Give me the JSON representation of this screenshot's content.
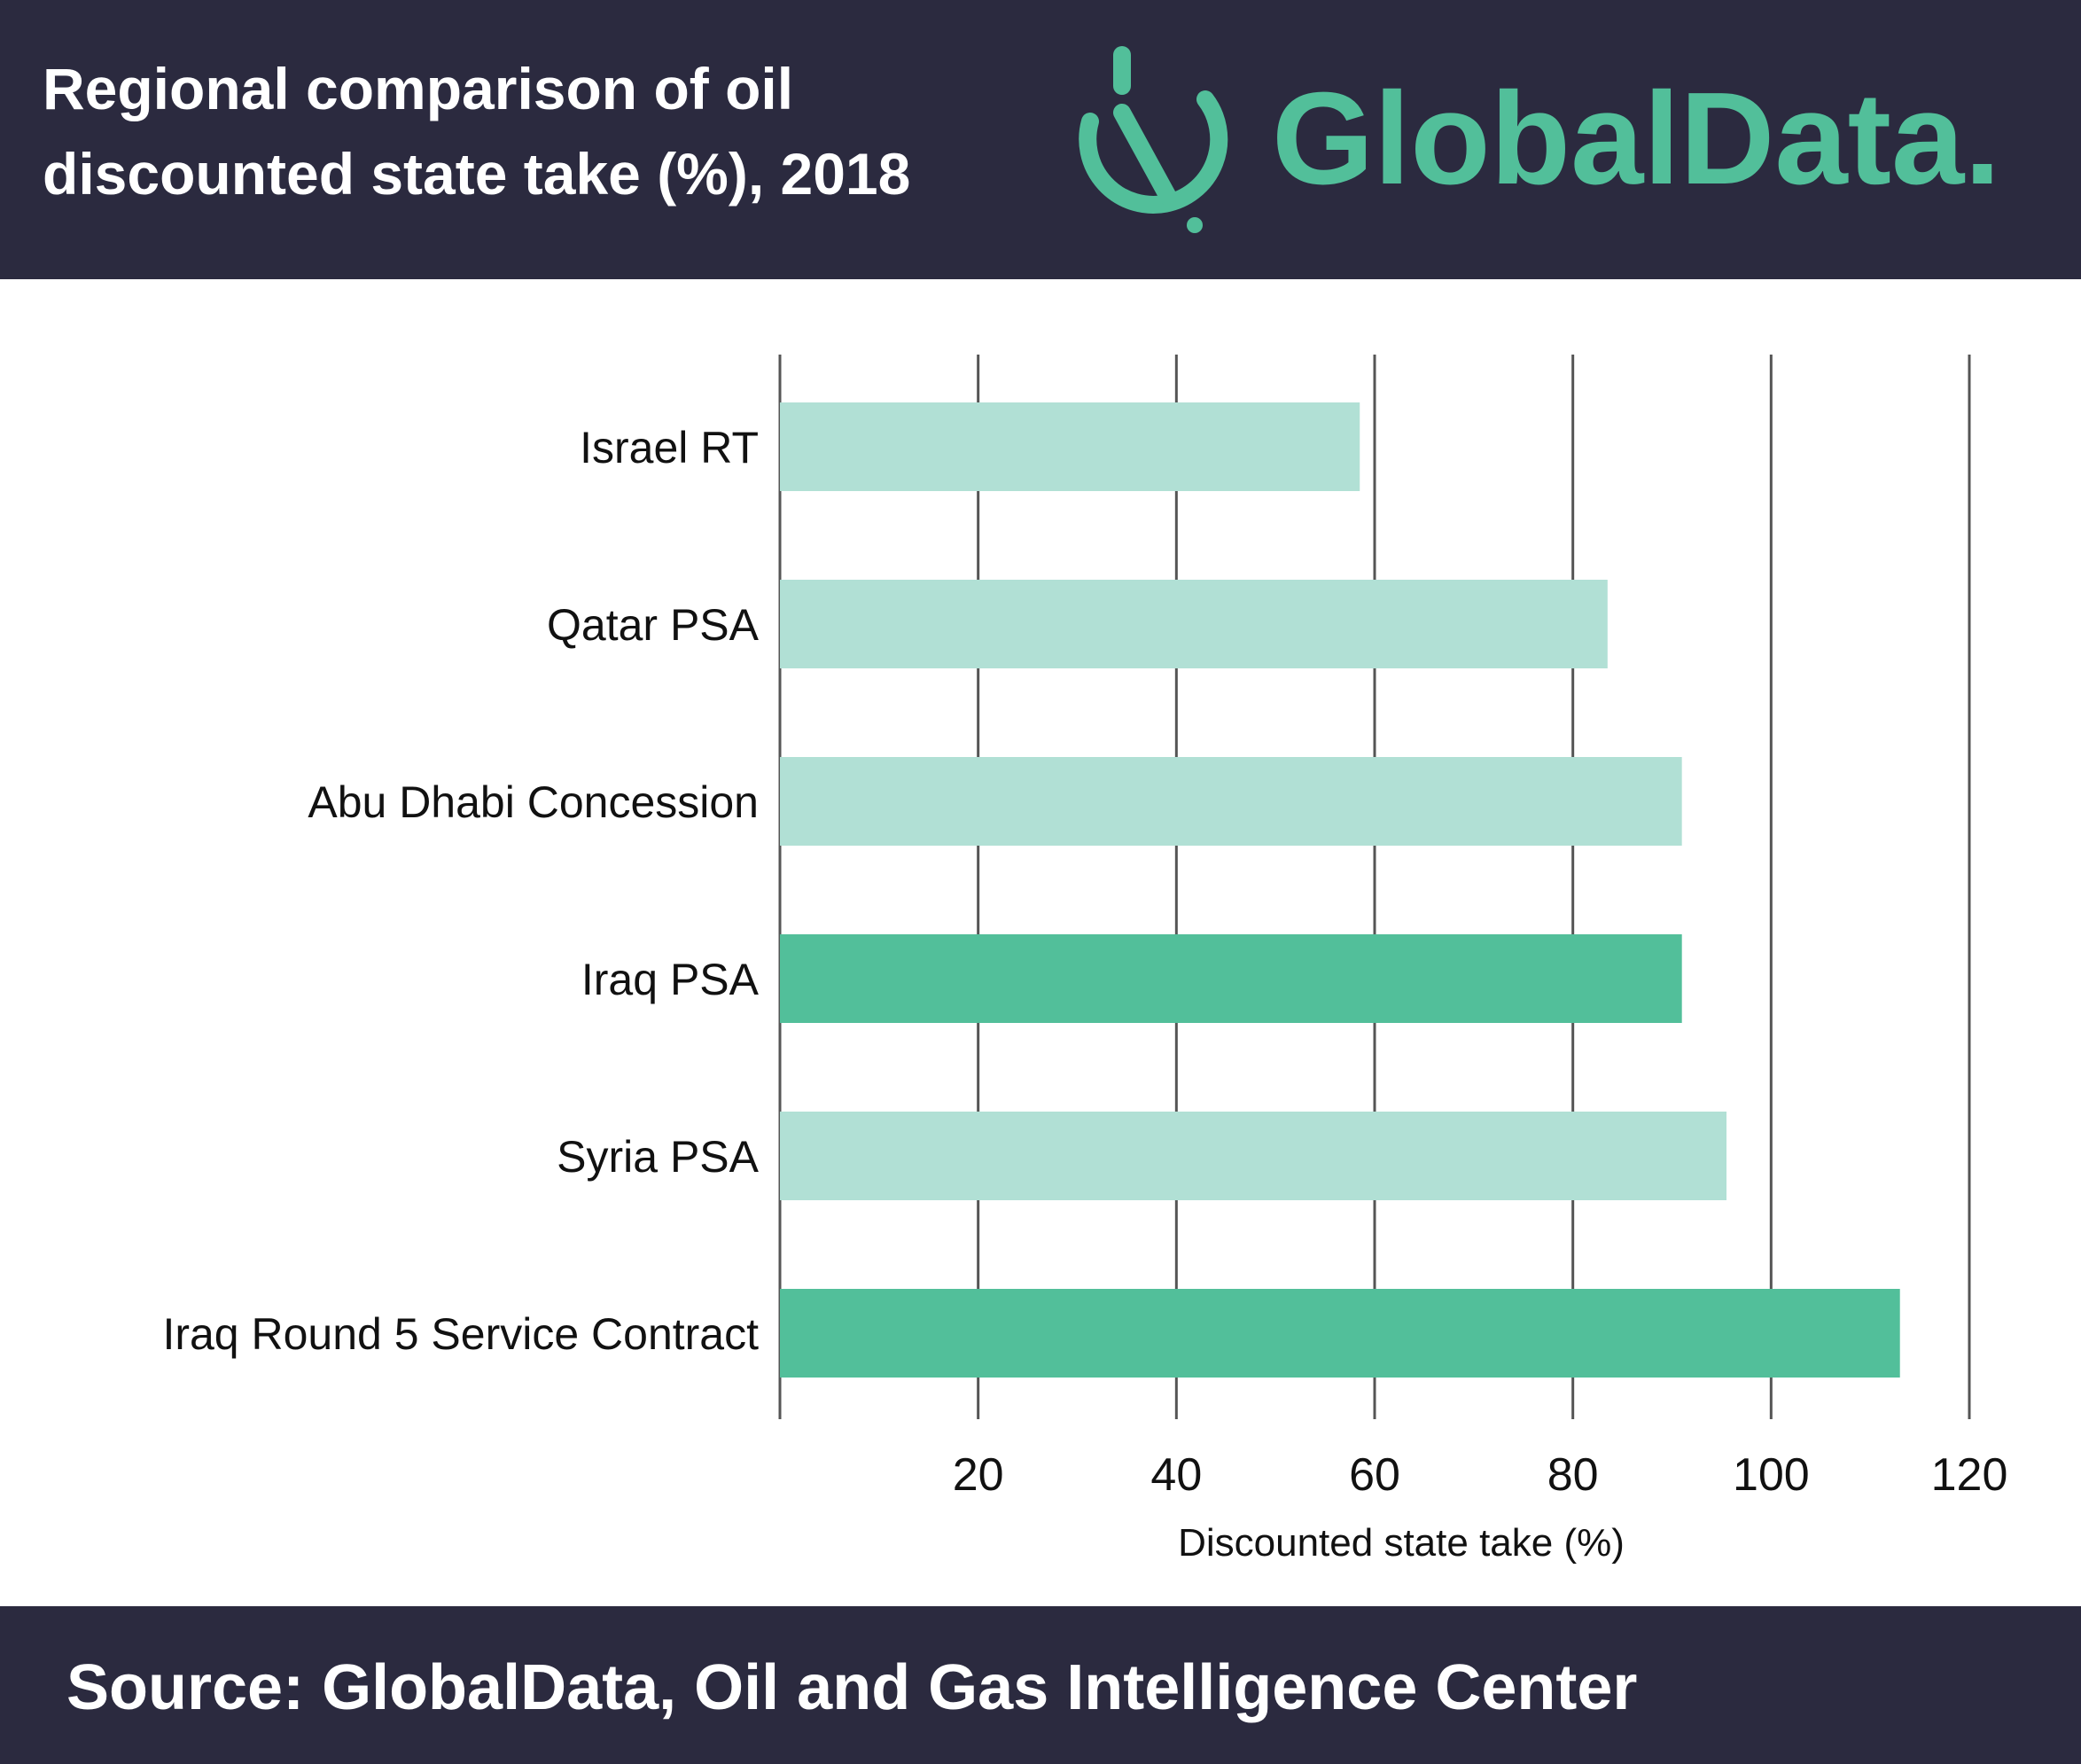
{
  "header": {
    "title_line1": "Regional comparison of oil",
    "title_line2": "discounted state take (%), 2018",
    "logo_text": "GlobalData."
  },
  "colors": {
    "background_dark": "#2b2a3f",
    "bar_light": "#b1e0d5",
    "bar_dark": "#52bf9a",
    "brand_green": "#52bf9a",
    "gridline": "#555555"
  },
  "chart_data": {
    "type": "bar",
    "orientation": "horizontal",
    "title": "Regional comparison of oil discounted state take (%), 2018",
    "categories": [
      "Israel RT",
      "Qatar PSA",
      "Abu Dhabi Concession",
      "Iraq PSA",
      "Syria PSA",
      "Iraq Round 5 Service Contract"
    ],
    "values": [
      58.5,
      83.5,
      91,
      91,
      95.5,
      113
    ],
    "highlighted": [
      false,
      false,
      false,
      true,
      false,
      true
    ],
    "xlabel": "Discounted state take (%)",
    "ylabel": "",
    "xlim": [
      0,
      120
    ],
    "xticks": [
      20,
      40,
      60,
      80,
      100,
      120
    ],
    "grid": "vertical"
  },
  "footer": {
    "source": "Source: GlobalData, Oil and Gas Intelligence Center"
  }
}
